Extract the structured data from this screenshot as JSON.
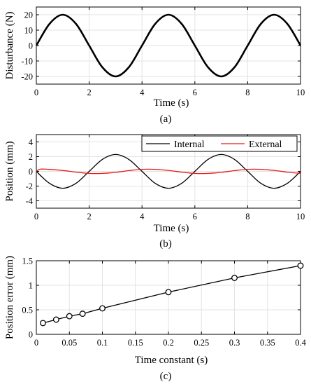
{
  "chart_data": [
    {
      "type": "line",
      "panel_label": "(a)",
      "xlabel": "Time (s)",
      "ylabel": "Disturbance (N)",
      "xlim": [
        0,
        10
      ],
      "ylim": [
        -25,
        25
      ],
      "xticks": [
        0,
        2,
        4,
        6,
        8,
        10
      ],
      "yticks": [
        -20,
        -10,
        0,
        10,
        20
      ],
      "grid": true,
      "series": [
        {
          "color": "#000000",
          "x": [
            0,
            0.5,
            1,
            1.5,
            2,
            2.5,
            3,
            3.5,
            4,
            4.5,
            5,
            5.5,
            6,
            6.5,
            7,
            7.5,
            8,
            8.5,
            9,
            9.5,
            10
          ],
          "y": [
            0,
            14.1,
            20,
            14.1,
            0,
            -14.1,
            -20,
            -14.1,
            0,
            14.1,
            20,
            14.1,
            0,
            -14.1,
            -20,
            -14.1,
            0,
            14.1,
            20,
            14.1,
            0
          ]
        }
      ]
    },
    {
      "type": "line",
      "panel_label": "(b)",
      "xlabel": "Time (s)",
      "ylabel": "Position (mm)",
      "xlim": [
        0,
        10
      ],
      "ylim": [
        -5,
        5
      ],
      "xticks": [
        0,
        2,
        4,
        6,
        8,
        10
      ],
      "yticks": [
        -4,
        -2,
        0,
        2,
        4
      ],
      "grid": true,
      "legend": "top-right",
      "series": [
        {
          "name": "Internal",
          "color": "#000000",
          "x": [
            0,
            0.5,
            1,
            1.5,
            2,
            2.5,
            3,
            3.5,
            4,
            4.5,
            5,
            5.5,
            6,
            6.5,
            7,
            7.5,
            8,
            8.5,
            9,
            9.5,
            10
          ],
          "y": [
            0,
            -1.63,
            -2.3,
            -1.63,
            0,
            1.63,
            2.3,
            1.63,
            0,
            -1.63,
            -2.3,
            -1.63,
            0,
            1.63,
            2.3,
            1.63,
            0,
            -1.63,
            -2.3,
            -1.63,
            0
          ]
        },
        {
          "name": "External",
          "color": "#e8191b",
          "x": [
            0,
            0.1,
            0.2,
            0.5,
            1,
            1.5,
            2,
            2.5,
            3,
            3.5,
            4,
            4.5,
            5,
            5.5,
            6,
            6.5,
            7,
            7.5,
            8,
            8.5,
            9,
            9.5,
            10
          ],
          "y": [
            0,
            0.25,
            0.32,
            0.27,
            0.12,
            -0.1,
            -0.28,
            -0.28,
            -0.13,
            0.1,
            0.28,
            0.28,
            0.13,
            -0.1,
            -0.28,
            -0.28,
            -0.13,
            0.1,
            0.28,
            0.28,
            0.13,
            -0.1,
            -0.28
          ]
        }
      ]
    },
    {
      "type": "line",
      "panel_label": "(c)",
      "xlabel": "Time constant (s)",
      "ylabel": "Position error (mm)",
      "xlim": [
        0,
        0.4
      ],
      "ylim": [
        0,
        1.5
      ],
      "xticks": [
        0,
        0.05,
        0.1,
        0.15,
        0.2,
        0.25,
        0.3,
        0.35,
        0.4
      ],
      "yticks": [
        0,
        0.5,
        1,
        1.5
      ],
      "grid": true,
      "markers": "circle",
      "series": [
        {
          "color": "#000000",
          "x": [
            0.01,
            0.03,
            0.05,
            0.07,
            0.1,
            0.2,
            0.3,
            0.4
          ],
          "y": [
            0.23,
            0.3,
            0.37,
            0.42,
            0.53,
            0.86,
            1.15,
            1.4
          ]
        }
      ]
    }
  ]
}
